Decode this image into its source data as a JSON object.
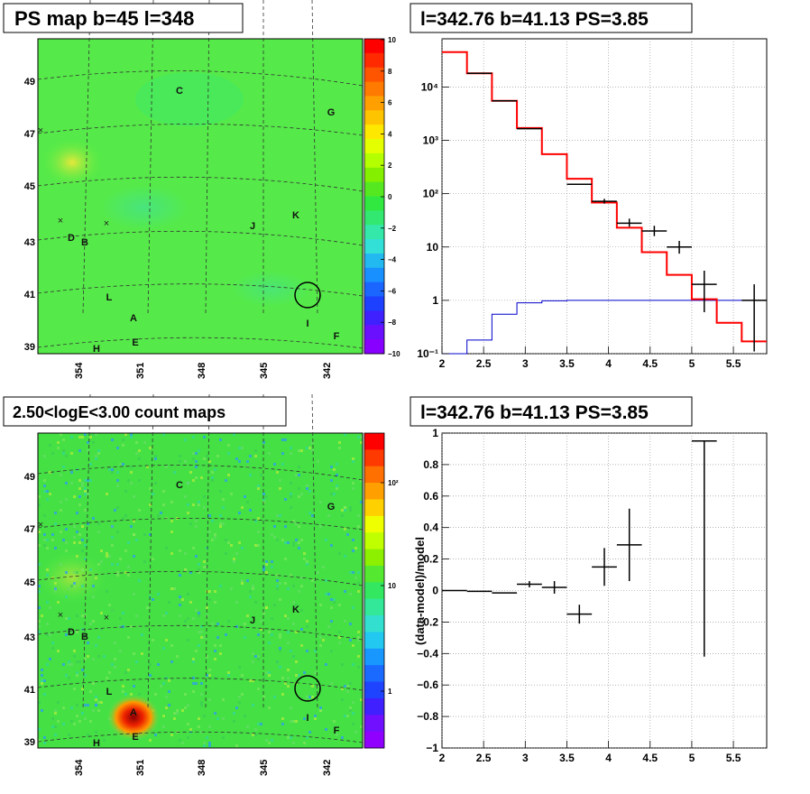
{
  "panels": {
    "ps_map": {
      "title": "PS map b=45 l=348"
    },
    "count_map": {
      "title": "2.50<logE<3.00 count maps"
    },
    "spectrum": {
      "title": "l=342.76 b=41.13 PS=3.85"
    },
    "residual": {
      "title": "l=342.76 b=41.13 PS=3.85"
    }
  },
  "colors": {
    "red": "#ff0000",
    "blue": "#0000cc",
    "black": "#000000",
    "map_green": "#33e833",
    "grid": "#222222"
  },
  "chart_data": [
    {
      "type": "heatmap",
      "title": "PS map b=45 l=348",
      "x_ticks": [
        "354",
        "351",
        "348",
        "345",
        "342"
      ],
      "y_ticks": [
        "49",
        "47",
        "45",
        "43",
        "41",
        "39"
      ],
      "colorbar": {
        "min": -10,
        "max": 10,
        "ticks": [
          "10",
          "8",
          "6",
          "4",
          "2",
          "0",
          "−2",
          "−4",
          "−6",
          "−8",
          "−10"
        ]
      },
      "sources": [
        "A",
        "B",
        "C",
        "D",
        "E",
        "F",
        "G",
        "H",
        "I",
        "J",
        "K",
        "L"
      ]
    },
    {
      "type": "line",
      "title": "l=342.76 b=41.13 PS=3.85",
      "x_ticks": [
        "2",
        "2.5",
        "3",
        "3.5",
        "4",
        "4.5",
        "5",
        "5.5"
      ],
      "y_ticks": [
        "10^-1",
        "1",
        "10",
        "10^2",
        "10^3",
        "10^4"
      ],
      "xlim": [
        2,
        5.9
      ],
      "ylim": [
        0.1,
        80000
      ],
      "log_y": true,
      "grid": true,
      "series": [
        {
          "color": "red",
          "edges": [
            2,
            2.3,
            2.6,
            2.9,
            3.2,
            3.5,
            3.8,
            4.1,
            4.4,
            4.7,
            5.0,
            5.3,
            5.6,
            5.9
          ],
          "values": [
            45000,
            18000,
            5500,
            1700,
            550,
            190,
            68,
            23,
            8,
            3,
            1.05,
            0.38,
            0.17
          ]
        },
        {
          "color": "blue",
          "edges": [
            2,
            2.3,
            2.6,
            2.9,
            3.2,
            3.5,
            3.8,
            4.1,
            4.4,
            4.7,
            5.0,
            5.3,
            5.6,
            5.9
          ],
          "values": [
            0.1,
            0.18,
            0.55,
            0.9,
            0.98,
            1.0,
            1.0,
            1.0,
            1.0,
            1.0,
            1.0,
            1.0,
            1.0
          ]
        },
        {
          "color": "black",
          "points": [
            {
              "x": 2.45,
              "y": 18000,
              "xerr": 0.15,
              "ylo": 18000,
              "yhi": 18000
            },
            {
              "x": 2.75,
              "y": 5500,
              "xerr": 0.15,
              "ylo": 5500,
              "yhi": 5500
            },
            {
              "x": 3.05,
              "y": 1650,
              "xerr": 0.15,
              "ylo": 1650,
              "yhi": 1650
            },
            {
              "x": 3.65,
              "y": 150,
              "xerr": 0.15,
              "ylo": 150,
              "yhi": 150
            },
            {
              "x": 3.95,
              "y": 72,
              "xerr": 0.15,
              "ylo": 65,
              "yhi": 80
            },
            {
              "x": 4.25,
              "y": 28,
              "xerr": 0.15,
              "ylo": 24,
              "yhi": 34
            },
            {
              "x": 4.55,
              "y": 20,
              "xerr": 0.15,
              "ylo": 16,
              "yhi": 25
            },
            {
              "x": 4.85,
              "y": 10,
              "xerr": 0.15,
              "ylo": 7.5,
              "yhi": 13
            },
            {
              "x": 5.15,
              "y": 2,
              "xerr": 0.15,
              "ylo": 0.6,
              "yhi": 3.6
            },
            {
              "x": 5.75,
              "y": 1,
              "xerr": 0.15,
              "ylo": 0.11,
              "yhi": 2
            }
          ]
        }
      ]
    },
    {
      "type": "heatmap",
      "title": "2.50<logE<3.00 count maps",
      "x_ticks": [
        "354",
        "351",
        "348",
        "345",
        "342"
      ],
      "y_ticks": [
        "49",
        "47",
        "45",
        "43",
        "41",
        "39"
      ],
      "colorbar": {
        "log": true,
        "ticks": [
          "10^2",
          "10",
          "1"
        ]
      },
      "sources": [
        "A",
        "B",
        "C",
        "D",
        "E",
        "F",
        "G",
        "H",
        "I",
        "J",
        "K",
        "L"
      ]
    },
    {
      "type": "scatter",
      "title": "l=342.76 b=41.13 PS=3.85",
      "ylabel": "(data-model)/model",
      "x_ticks": [
        "2",
        "2.5",
        "3",
        "3.5",
        "4",
        "4.5",
        "5",
        "5.5"
      ],
      "y_ticks": [
        "1",
        "0.8",
        "0.6",
        "0.4",
        "0.2",
        "0",
        "−0.2",
        "−0.4",
        "−0.6",
        "−0.8",
        "−1"
      ],
      "xlim": [
        2,
        5.9
      ],
      "ylim": [
        -1,
        1
      ],
      "grid": true,
      "points": [
        {
          "x": 2.15,
          "y": 0.0,
          "xerr": 0.15,
          "yerr": 0.0
        },
        {
          "x": 2.45,
          "y": -0.005,
          "xerr": 0.15,
          "yerr": 0.0
        },
        {
          "x": 2.75,
          "y": -0.015,
          "xerr": 0.15,
          "yerr": 0.0
        },
        {
          "x": 3.05,
          "y": 0.04,
          "xerr": 0.15,
          "yerr": 0.02
        },
        {
          "x": 3.35,
          "y": 0.02,
          "xerr": 0.15,
          "yerr": 0.04
        },
        {
          "x": 3.65,
          "y": -0.15,
          "xerr": 0.15,
          "yerr": 0.06
        },
        {
          "x": 3.95,
          "y": 0.15,
          "xerr": 0.15,
          "yerr": 0.12
        },
        {
          "x": 4.25,
          "y": 0.29,
          "xerr": 0.15,
          "yerr": 0.23
        },
        {
          "x": 5.15,
          "y": 0.95,
          "xerr": 0.15,
          "ylo": -0.42,
          "yhi": 0.95
        }
      ]
    }
  ]
}
